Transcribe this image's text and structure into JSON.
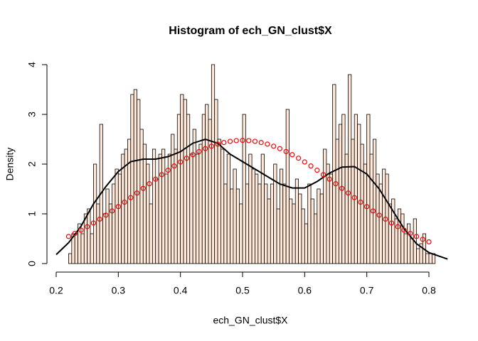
{
  "chart_data": {
    "type": "histogram",
    "title": "Histogram of ech_GN_clust$X",
    "xlabel": "ech_GN_clust$X",
    "ylabel": "Density",
    "bins": [
      0.22,
      0.225,
      0.23,
      0.235,
      0.24,
      0.245,
      0.25,
      0.255,
      0.26,
      0.265,
      0.27,
      0.275,
      0.28,
      0.285,
      0.29,
      0.295,
      0.3,
      0.305,
      0.31,
      0.315,
      0.32,
      0.325,
      0.33,
      0.335,
      0.34,
      0.345,
      0.35,
      0.355,
      0.36,
      0.365,
      0.37,
      0.375,
      0.38,
      0.385,
      0.39,
      0.395,
      0.4,
      0.405,
      0.41,
      0.415,
      0.42,
      0.425,
      0.43,
      0.435,
      0.44,
      0.445,
      0.45,
      0.455,
      0.46,
      0.465,
      0.47,
      0.475,
      0.48,
      0.485,
      0.49,
      0.495,
      0.5,
      0.505,
      0.51,
      0.515,
      0.52,
      0.525,
      0.53,
      0.535,
      0.54,
      0.545,
      0.55,
      0.555,
      0.56,
      0.565,
      0.57,
      0.575,
      0.58,
      0.585,
      0.59,
      0.595,
      0.6,
      0.605,
      0.61,
      0.615,
      0.62,
      0.625,
      0.63,
      0.635,
      0.64,
      0.645,
      0.65,
      0.655,
      0.66,
      0.665,
      0.67,
      0.675,
      0.68,
      0.685,
      0.69,
      0.695,
      0.7,
      0.705,
      0.71,
      0.715,
      0.72,
      0.725,
      0.73,
      0.735,
      0.74,
      0.745,
      0.75,
      0.755,
      0.76,
      0.765,
      0.77,
      0.775,
      0.78,
      0.785,
      0.79,
      0.795,
      0.8,
      0.805,
      0.81
    ],
    "values": [
      0.2,
      0.6,
      0.6,
      0.8,
      0.6,
      1.0,
      1.1,
      0.6,
      2.0,
      1.2,
      2.8,
      1.0,
      1.5,
      1.2,
      1.6,
      1.9,
      1.8,
      2.2,
      2.3,
      2.5,
      3.4,
      3.5,
      3.3,
      2.7,
      2.4,
      2.0,
      1.2,
      2.3,
      1.7,
      2.2,
      2.3,
      1.8,
      2.2,
      2.6,
      2.3,
      3.0,
      3.4,
      3.3,
      3.0,
      2.2,
      2.7,
      2.2,
      2.4,
      3.0,
      3.2,
      2.9,
      4.0,
      3.3,
      2.5,
      2.3,
      1.6,
      2.2,
      1.5,
      1.9,
      1.5,
      1.2,
      3.0,
      1.6,
      2.2,
      1.9,
      1.8,
      1.6,
      2.2,
      1.6,
      1.3,
      1.6,
      2.0,
      1.1,
      1.9,
      1.6,
      3.1,
      1.3,
      1.2,
      1.7,
      1.4,
      1.1,
      0.8,
      1.6,
      1.3,
      1.0,
      1.5,
      1.4,
      2.3,
      2.0,
      1.8,
      3.6,
      2.5,
      2.8,
      3.0,
      2.2,
      3.8,
      2.5,
      3.0,
      2.8,
      2.4,
      2.0,
      3.0,
      2.2,
      2.5,
      1.8,
      1.6,
      1.9,
      1.8,
      1.2,
      1.3,
      0.9,
      1.1,
      1.0,
      0.6,
      0.8,
      0.5,
      0.9,
      0.3,
      0.4,
      0.6,
      0.2,
      0.2,
      0.2
    ],
    "color": "#FFE8D8",
    "density_line": {
      "color": "#000000",
      "x": [
        0.2,
        0.22,
        0.24,
        0.26,
        0.28,
        0.3,
        0.32,
        0.34,
        0.36,
        0.38,
        0.4,
        0.42,
        0.44,
        0.46,
        0.48,
        0.5,
        0.52,
        0.54,
        0.56,
        0.58,
        0.6,
        0.62,
        0.64,
        0.66,
        0.68,
        0.7,
        0.72,
        0.74,
        0.76,
        0.78,
        0.8,
        0.83
      ],
      "values": [
        0.18,
        0.42,
        0.75,
        1.2,
        1.55,
        1.85,
        2.05,
        2.1,
        2.1,
        2.15,
        2.25,
        2.42,
        2.5,
        2.42,
        2.2,
        2.05,
        1.9,
        1.75,
        1.6,
        1.52,
        1.52,
        1.65,
        1.82,
        1.94,
        1.95,
        1.8,
        1.5,
        1.1,
        0.7,
        0.4,
        0.22,
        0.09
      ]
    },
    "normal_points": {
      "color": "#FF0000",
      "x": [
        0.22,
        0.23,
        0.24,
        0.25,
        0.26,
        0.27,
        0.28,
        0.29,
        0.3,
        0.31,
        0.32,
        0.33,
        0.34,
        0.35,
        0.36,
        0.37,
        0.38,
        0.39,
        0.4,
        0.41,
        0.42,
        0.43,
        0.44,
        0.45,
        0.46,
        0.47,
        0.48,
        0.49,
        0.5,
        0.51,
        0.52,
        0.53,
        0.54,
        0.55,
        0.56,
        0.57,
        0.58,
        0.59,
        0.6,
        0.61,
        0.62,
        0.63,
        0.64,
        0.65,
        0.66,
        0.67,
        0.68,
        0.69,
        0.7,
        0.71,
        0.72,
        0.73,
        0.74,
        0.75,
        0.76,
        0.77,
        0.78,
        0.79,
        0.8
      ],
      "values": [
        0.545,
        0.606,
        0.672,
        0.741,
        0.815,
        0.893,
        0.974,
        1.058,
        1.145,
        1.235,
        1.326,
        1.419,
        1.512,
        1.605,
        1.697,
        1.788,
        1.877,
        1.962,
        2.043,
        2.119,
        2.189,
        2.253,
        2.311,
        2.36,
        2.402,
        2.434,
        2.458,
        2.472,
        2.477,
        2.472,
        2.458,
        2.434,
        2.402,
        2.36,
        2.311,
        2.253,
        2.189,
        2.119,
        2.043,
        1.962,
        1.877,
        1.788,
        1.697,
        1.605,
        1.512,
        1.419,
        1.326,
        1.235,
        1.145,
        1.058,
        0.974,
        0.893,
        0.815,
        0.741,
        0.672,
        0.606,
        0.545,
        0.488,
        0.436
      ]
    },
    "xlim": [
      0.2,
      0.8
    ],
    "ylim": [
      0,
      4
    ],
    "xticks": [
      0.2,
      0.3,
      0.4,
      0.5,
      0.6,
      0.7,
      0.8
    ],
    "yticks": [
      0,
      1,
      2,
      3,
      4
    ]
  }
}
